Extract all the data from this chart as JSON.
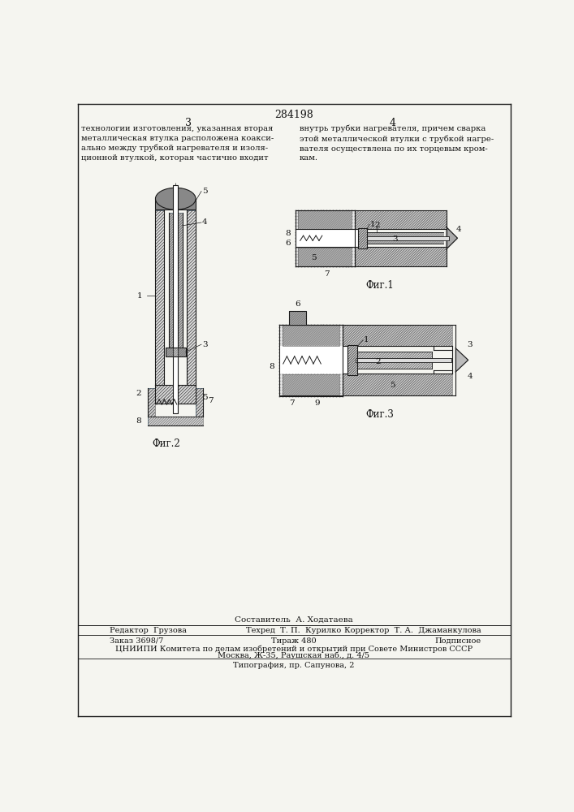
{
  "patent_number": "284198",
  "page_left": "3",
  "page_right": "4",
  "text_left": "технологии изготовления, указанная вторая\nметаллическая втулка расположена коакси-\nально между трубкой нагревателя и изоля-\nционной втулкой, которая частично входит",
  "text_right": "внутрь трубки нагревателя, причем сварка\nэтой металлической втулки с трубкой нагре-\nвателя осуществлена по их торцевым кром-\nкам.",
  "fig1_label": "Фиг.1",
  "fig2_label": "Фиг.2",
  "fig3_label": "Фиг.3",
  "footer_line1_left": "Редактор  Грузова",
  "footer_line1_mid": "Техред  Т. П.  Курилко",
  "footer_line1_right": "Корректор  Т. А.  Джаманкулова",
  "footer_line2_left": "Заказ 3698/7",
  "footer_line2_mid": "Тираж 480",
  "footer_line2_right": "Подписное",
  "footer_line3": "ЦНИИПИ Комитета по делам изобретений и открытий при Совете Министров СССР",
  "footer_line4": "Москва, Ж-35, Раушская наб., д. 4/5",
  "footer_line5": "Типография, пр. Сапунова, 2",
  "составитель": "Составитель  А. Ходатаева",
  "bg_color": "#f5f5f0",
  "line_color": "#1a1a1a",
  "text_color": "#111111"
}
